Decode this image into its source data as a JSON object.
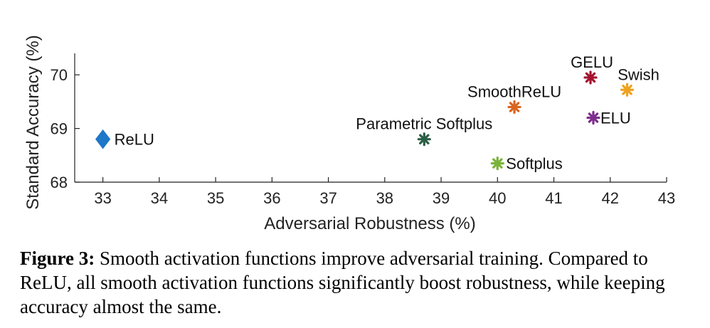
{
  "chart_data": {
    "type": "scatter",
    "title": "",
    "xlabel": "Adversarial Robustness (%)",
    "ylabel": "Standard Accuracy (%)",
    "xlim": [
      32.5,
      43
    ],
    "ylim": [
      68,
      70.4
    ],
    "xticks": [
      "33",
      "34",
      "35",
      "36",
      "37",
      "38",
      "39",
      "40",
      "41",
      "42",
      "43"
    ],
    "yticks": [
      "68",
      "69",
      "70"
    ],
    "grid": false,
    "points": [
      {
        "name": "ReLU",
        "x": 33.0,
        "y": 68.8,
        "marker": "diamond",
        "color": "#1f77c8"
      },
      {
        "name": "Parametric Softplus",
        "x": 38.7,
        "y": 68.8,
        "marker": "asterisk",
        "color": "#2a5e44"
      },
      {
        "name": "Softplus",
        "x": 40.0,
        "y": 68.35,
        "marker": "asterisk",
        "color": "#7ab33a"
      },
      {
        "name": "SmoothReLU",
        "x": 40.3,
        "y": 69.4,
        "marker": "asterisk",
        "color": "#d9641e"
      },
      {
        "name": "GELU",
        "x": 41.65,
        "y": 69.95,
        "marker": "asterisk",
        "color": "#a5122f"
      },
      {
        "name": "ELU",
        "x": 41.7,
        "y": 69.2,
        "marker": "asterisk",
        "color": "#7e2c8e"
      },
      {
        "name": "Swish",
        "x": 42.3,
        "y": 69.72,
        "marker": "asterisk",
        "color": "#eda31e"
      }
    ]
  },
  "caption": {
    "label": "Figure 3:",
    "text": "Smooth activation functions improve adversarial training. Compared to ReLU, all smooth activation functions significantly boost robustness, while keeping accuracy almost the same."
  }
}
